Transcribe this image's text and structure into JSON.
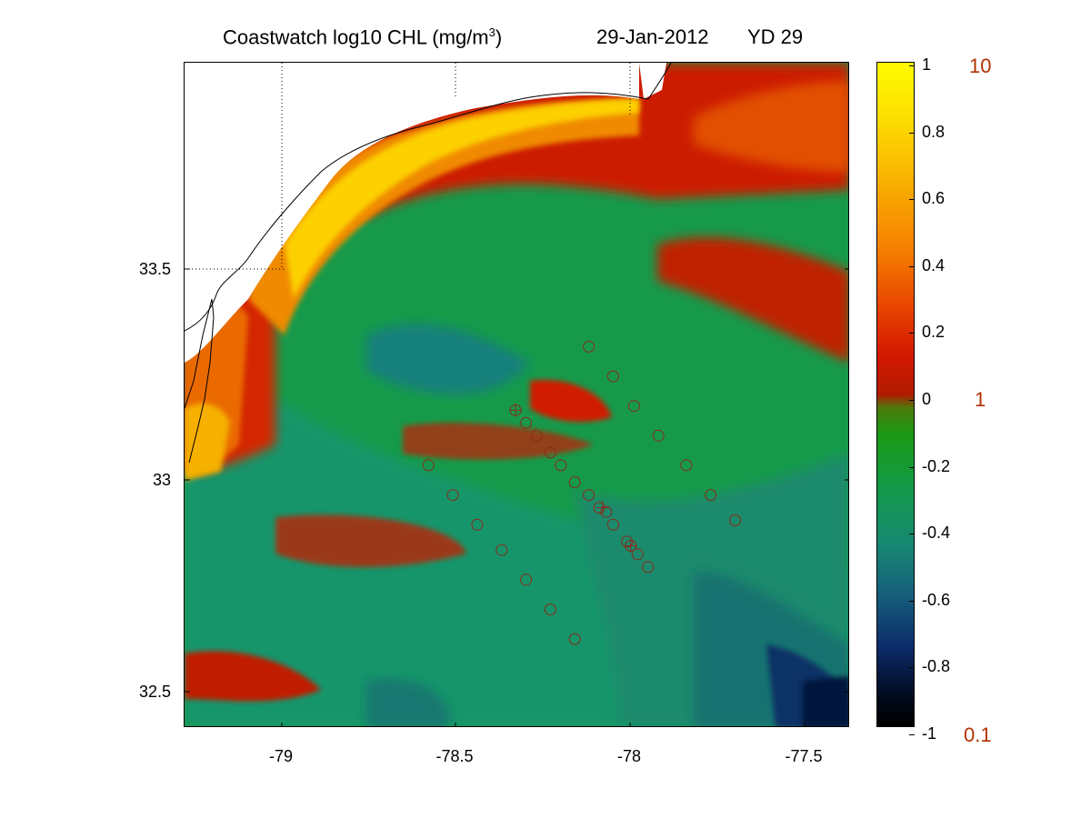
{
  "title": {
    "main": "Coastwatch  log10  CHL (mg/m",
    "superscript": "3",
    "close": ")",
    "date": "29-Jan-2012",
    "yearday": "YD 29"
  },
  "axes": {
    "x_ticks": [
      "-79",
      "-78.5",
      "-78",
      "-77.5"
    ],
    "y_ticks": [
      "33.5",
      "33",
      "32.5"
    ]
  },
  "colorbar": {
    "ticks": [
      "1",
      "0.8",
      "0.6",
      "0.4",
      "0.2",
      "0",
      "-0.2",
      "-0.4",
      "-0.6",
      "-0.8",
      "-1"
    ],
    "linear_labels": [
      "10",
      "1",
      "0.1"
    ],
    "label_color": "#b23200"
  },
  "chart_data": {
    "type": "heatmap",
    "variable": "log10 CHL (mg/m3)",
    "xlim": [
      -79.28,
      -77.37
    ],
    "ylim": [
      32.42,
      33.99
    ],
    "clim": [
      -1,
      1
    ],
    "station_markers": [
      [
        -78.12,
        33.32
      ],
      [
        -78.05,
        33.25
      ],
      [
        -77.99,
        33.18
      ],
      [
        -77.92,
        33.11
      ],
      [
        -77.84,
        33.04
      ],
      [
        -77.77,
        32.97
      ],
      [
        -77.7,
        32.91
      ],
      [
        -78.33,
        33.17
      ],
      [
        -78.3,
        33.14
      ],
      [
        -78.27,
        33.11
      ],
      [
        -78.23,
        33.07
      ],
      [
        -78.2,
        33.04
      ],
      [
        -78.16,
        33.0
      ],
      [
        -78.12,
        32.97
      ],
      [
        -78.09,
        32.94
      ],
      [
        -78.07,
        32.93
      ],
      [
        -78.05,
        32.9
      ],
      [
        -78.01,
        32.86
      ],
      [
        -78.0,
        32.85
      ],
      [
        -77.98,
        32.83
      ],
      [
        -77.95,
        32.8
      ],
      [
        -78.58,
        33.04
      ],
      [
        -78.51,
        32.97
      ],
      [
        -78.44,
        32.9
      ],
      [
        -78.37,
        32.84
      ],
      [
        -78.3,
        32.77
      ],
      [
        -78.23,
        32.7
      ],
      [
        -78.16,
        32.63
      ]
    ],
    "crossed_markers": [
      [
        -78.33,
        33.17
      ],
      [
        -78.08,
        32.94
      ],
      [
        -78.0,
        32.85
      ]
    ]
  }
}
